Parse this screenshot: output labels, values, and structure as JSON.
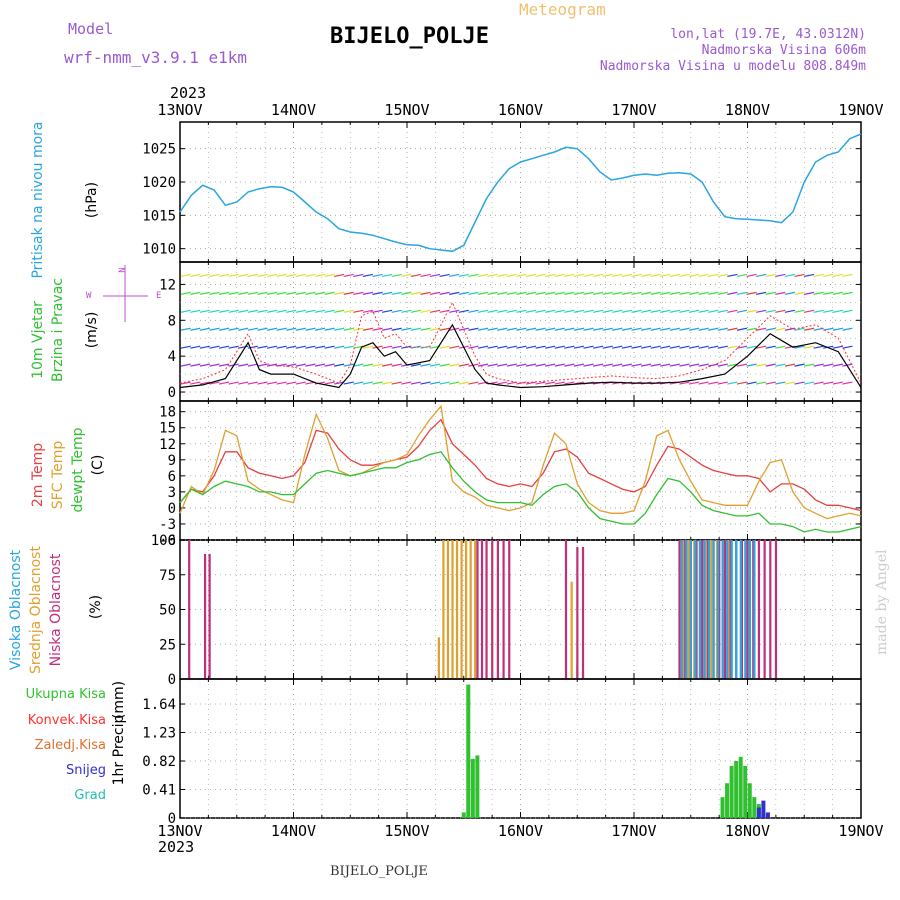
{
  "header": {
    "model_label": "Model",
    "model_name": "wrf-nmm_v3.9.1 e1km",
    "app_title": "Meteogram",
    "station": "BIJELO_POLJE",
    "lonlat": "lon,lat (19.7E, 43.0312N)",
    "altitude": "Nadmorska Visina 606m",
    "model_altitude": "Nadmorska Visina u modelu 808.849m",
    "year_top": "2023",
    "year_bottom": "2023",
    "footer_station": "BIJELO_POLJE",
    "credit": "made by Angel"
  },
  "colors": {
    "pressure": "#29a6e0",
    "wind_speed": "#000000",
    "wind_gust": "#ff3030",
    "t2m": "#e84040",
    "tsfc": "#e0a030",
    "dewpt": "#30c030",
    "high_cloud": "#29a6e0",
    "mid_cloud": "#e0a030",
    "low_cloud": "#c0307a",
    "total_precip": "#30c030",
    "conv_precip": "#ff3030",
    "snow": "#3030d0",
    "grid": "#999999"
  },
  "time_axis": {
    "labels": [
      "13NOV",
      "14NOV",
      "15NOV",
      "16NOV",
      "17NOV",
      "18NOV",
      "19NOV"
    ]
  },
  "chart_data": [
    {
      "type": "line",
      "id": "pressure",
      "ylabel_title": "Pritisak na nivou mora",
      "ylabel_unit": "(hPa)",
      "ylim": [
        1008,
        1029
      ],
      "yticks": [
        1010,
        1015,
        1020,
        1025
      ],
      "grid": true,
      "x": [
        0,
        0.1,
        0.2,
        0.3,
        0.4,
        0.5,
        0.6,
        0.7,
        0.8,
        0.9,
        1.0,
        1.1,
        1.2,
        1.3,
        1.4,
        1.5,
        1.6,
        1.7,
        1.8,
        1.9,
        2.0,
        2.1,
        2.2,
        2.3,
        2.4,
        2.5,
        2.6,
        2.7,
        2.8,
        2.9,
        3.0,
        3.1,
        3.2,
        3.3,
        3.4,
        3.5,
        3.6,
        3.7,
        3.8,
        3.9,
        4.0,
        4.1,
        4.2,
        4.3,
        4.4,
        4.5,
        4.6,
        4.7,
        4.8,
        4.9,
        5.0,
        5.1,
        5.2,
        5.3,
        5.4,
        5.5,
        5.6,
        5.7,
        5.8,
        5.9,
        6.0
      ],
      "series": [
        {
          "values": [
            1015.5,
            1018.0,
            1019.5,
            1018.8,
            1016.5,
            1017.0,
            1018.5,
            1019.0,
            1019.3,
            1019.2,
            1018.5,
            1017.0,
            1015.5,
            1014.5,
            1013.0,
            1012.5,
            1012.3,
            1012.0,
            1011.5,
            1011.0,
            1010.6,
            1010.5,
            1010.0,
            1009.8,
            1009.6,
            1010.5,
            1014.0,
            1017.5,
            1020.0,
            1022.0,
            1023.0,
            1023.5,
            1024.0,
            1024.5,
            1025.2,
            1025.0,
            1023.5,
            1021.5,
            1020.3,
            1020.6,
            1021.0,
            1021.2,
            1021.0,
            1021.3,
            1021.4,
            1021.2,
            1020.0,
            1017.0,
            1014.8,
            1014.5,
            1014.4,
            1014.3,
            1014.2,
            1013.9,
            1015.5,
            1020.0,
            1023.0,
            1024.0,
            1024.5,
            1026.5,
            1027.2
          ]
        }
      ]
    },
    {
      "type": "line",
      "id": "wind",
      "ylabel_title": "10m Vjetar",
      "ylabel_title2": "Brzina i Pravac",
      "ylabel_unit": "(m/s)",
      "legend_north": "N",
      "legend_east": "E",
      "legend_west": "W",
      "ylim": [
        -1,
        14.5
      ],
      "yticks": [
        0,
        4,
        8,
        12
      ],
      "yticks_minor": [
        2,
        6,
        10
      ],
      "grid": true,
      "x": [
        0,
        0.2,
        0.4,
        0.6,
        0.7,
        0.8,
        1.0,
        1.2,
        1.4,
        1.5,
        1.6,
        1.7,
        1.8,
        1.9,
        2.0,
        2.2,
        2.4,
        2.6,
        2.7,
        2.8,
        3.0,
        3.2,
        3.4,
        3.6,
        3.8,
        4.0,
        4.2,
        4.4,
        4.6,
        4.8,
        5.0,
        5.2,
        5.4,
        5.6,
        5.8,
        6.0
      ],
      "series": [
        {
          "name": "speed",
          "values": [
            0.5,
            0.8,
            1.5,
            5.5,
            2.5,
            2.0,
            2.0,
            1.0,
            0.5,
            2.0,
            5.0,
            5.5,
            4.0,
            4.5,
            3.0,
            3.5,
            7.5,
            2.5,
            1.0,
            0.8,
            0.5,
            0.6,
            0.8,
            1.0,
            1.1,
            1.0,
            1.0,
            1.1,
            1.5,
            2.0,
            4.0,
            6.5,
            5.0,
            5.5,
            4.5,
            0.5
          ]
        },
        {
          "name": "gust",
          "values": [
            1.0,
            1.5,
            2.5,
            6.5,
            3.5,
            3.0,
            2.8,
            2.0,
            1.0,
            3.0,
            8.5,
            9.0,
            6.0,
            6.5,
            5.0,
            5.0,
            10.0,
            4.0,
            2.0,
            1.5,
            1.0,
            1.2,
            1.4,
            1.6,
            1.8,
            1.6,
            1.5,
            1.8,
            2.5,
            3.5,
            6.0,
            8.5,
            7.0,
            7.5,
            6.0,
            1.0
          ]
        }
      ]
    },
    {
      "type": "line",
      "id": "temperature",
      "ylabel_title": "2m Temp",
      "ylabel_title2": "SFC Temp",
      "ylabel_title3": "dewpt Temp",
      "ylabel_unit": "(C)",
      "ylim": [
        -6,
        20
      ],
      "yticks": [
        -6,
        -3,
        0,
        3,
        6,
        9,
        12,
        15,
        18
      ],
      "grid": true,
      "x": [
        0,
        0.1,
        0.2,
        0.3,
        0.4,
        0.5,
        0.6,
        0.7,
        0.8,
        0.9,
        1.0,
        1.1,
        1.2,
        1.3,
        1.4,
        1.5,
        1.6,
        1.7,
        1.8,
        1.9,
        2.0,
        2.1,
        2.2,
        2.3,
        2.4,
        2.5,
        2.6,
        2.7,
        2.8,
        2.9,
        3.0,
        3.1,
        3.2,
        3.3,
        3.4,
        3.5,
        3.6,
        3.7,
        3.8,
        3.9,
        4.0,
        4.1,
        4.2,
        4.3,
        4.4,
        4.5,
        4.6,
        4.7,
        4.8,
        4.9,
        5.0,
        5.1,
        5.2,
        5.3,
        5.4,
        5.5,
        5.6,
        5.7,
        5.8,
        5.9,
        6.0
      ],
      "series": [
        {
          "name": "t2m",
          "values": [
            1.0,
            3.5,
            3.0,
            6.0,
            10.5,
            10.5,
            7.5,
            6.5,
            6.0,
            5.5,
            6.0,
            8.5,
            14.5,
            14.0,
            11.0,
            9.0,
            8.0,
            8.0,
            8.5,
            9.0,
            9.5,
            11.5,
            14.5,
            16.5,
            12.0,
            10.0,
            8.0,
            5.5,
            4.5,
            4.0,
            4.5,
            4.0,
            6.5,
            10.5,
            11.0,
            9.5,
            6.5,
            5.5,
            4.5,
            3.5,
            3.0,
            4.0,
            8.0,
            11.5,
            11.0,
            9.5,
            8.0,
            7.0,
            6.5,
            6.0,
            6.0,
            5.5,
            3.0,
            4.5,
            4.5,
            3.5,
            1.5,
            0.5,
            0.5,
            0.0,
            -0.5
          ]
        },
        {
          "name": "tsfc",
          "values": [
            -1.0,
            4.0,
            2.5,
            7.0,
            14.5,
            13.5,
            5.0,
            3.5,
            2.5,
            1.5,
            1.0,
            10.0,
            17.5,
            13.0,
            7.0,
            6.0,
            6.5,
            7.5,
            8.5,
            9.0,
            10.0,
            13.5,
            16.5,
            19.0,
            5.0,
            3.0,
            2.0,
            0.5,
            0.0,
            -0.5,
            0.0,
            1.0,
            8.0,
            14.0,
            12.0,
            4.5,
            1.0,
            -0.5,
            -1.0,
            -1.0,
            -0.5,
            5.0,
            13.5,
            14.5,
            9.0,
            5.0,
            1.5,
            1.0,
            0.5,
            0.5,
            0.5,
            5.0,
            8.5,
            9.0,
            3.0,
            0.0,
            -1.0,
            -2.0,
            -1.5,
            -1.0,
            -1.5
          ]
        },
        {
          "name": "dewpt",
          "values": [
            1.0,
            3.5,
            2.5,
            4.0,
            5.0,
            4.5,
            4.0,
            3.0,
            3.0,
            2.5,
            2.5,
            4.5,
            6.5,
            7.0,
            6.5,
            6.0,
            6.5,
            7.0,
            7.5,
            7.5,
            8.5,
            9.0,
            10.0,
            10.5,
            7.5,
            5.0,
            3.0,
            1.5,
            1.0,
            1.0,
            1.0,
            0.5,
            2.5,
            4.0,
            4.5,
            3.0,
            0.0,
            -2.0,
            -2.5,
            -3.0,
            -3.0,
            -1.0,
            2.5,
            5.5,
            5.0,
            3.0,
            0.5,
            -0.5,
            -1.0,
            -1.5,
            -1.5,
            -1.0,
            -3.0,
            -3.0,
            -3.5,
            -4.5,
            -4.0,
            -4.5,
            -4.5,
            -4.0,
            -3.5
          ]
        }
      ]
    },
    {
      "type": "bar",
      "id": "cloud",
      "ylabel_title": "Visoka Oblacnost",
      "ylabel_title2": "Srednja Oblacnost",
      "ylabel_title3": "Niska Oblacnost",
      "ylabel_unit": "(%)",
      "ylim": [
        0,
        100
      ],
      "yticks": [
        0,
        25,
        50,
        75,
        100
      ],
      "grid": true,
      "series": [
        {
          "name": "low",
          "x": [
            0.08,
            0.22,
            0.26,
            2.62,
            2.66,
            2.7,
            2.75,
            2.8,
            2.85,
            2.9,
            3.4,
            3.5,
            3.55,
            4.4,
            4.45,
            4.5,
            4.55,
            4.6,
            4.65,
            4.7,
            4.75,
            4.8,
            4.85,
            4.9,
            4.95,
            5.0,
            5.05,
            5.1,
            5.15,
            5.2,
            5.25
          ],
          "values": [
            100,
            90,
            90,
            100,
            100,
            100,
            100,
            100,
            100,
            100,
            100,
            95,
            95,
            100,
            100,
            100,
            100,
            100,
            100,
            100,
            100,
            100,
            100,
            100,
            100,
            100,
            100,
            100,
            100,
            100,
            100
          ]
        },
        {
          "name": "mid",
          "x": [
            2.28,
            2.32,
            2.36,
            2.4,
            2.44,
            2.48,
            2.52,
            2.56,
            2.6,
            3.45,
            3.5,
            3.55,
            4.43,
            4.48,
            4.53,
            4.58,
            4.63,
            4.68,
            4.73,
            4.78,
            4.83
          ],
          "values": [
            30,
            100,
            100,
            100,
            100,
            100,
            100,
            100,
            100,
            70,
            10,
            5,
            100,
            100,
            100,
            100,
            100,
            100,
            100,
            100,
            100
          ]
        },
        {
          "name": "high",
          "x": [
            4.42,
            4.46,
            4.5,
            4.54,
            4.58,
            4.62,
            4.66,
            4.7,
            4.74,
            4.78,
            4.82,
            4.86,
            4.9,
            4.94,
            4.98,
            5.02,
            5.06
          ],
          "values": [
            100,
            100,
            100,
            100,
            100,
            100,
            100,
            100,
            100,
            100,
            100,
            100,
            100,
            100,
            100,
            100,
            100
          ]
        }
      ]
    },
    {
      "type": "bar",
      "id": "precip",
      "ylabel_title": "1hr Precip",
      "ylabel_unit": "(mm)",
      "legend": [
        "Ukupna Kisa",
        "Konvek.Kisa",
        "Zaledj.Kisa",
        "Snijeg",
        "Grad"
      ],
      "ylim": [
        0,
        2.0
      ],
      "yticks": [
        0,
        0.41,
        0.82,
        1.23,
        1.64
      ],
      "grid": true,
      "series": [
        {
          "name": "total",
          "x": [
            2.5,
            2.54,
            2.58,
            2.62,
            4.78,
            4.82,
            4.86,
            4.9,
            4.94,
            4.98,
            5.02,
            5.06,
            5.1,
            5.14
          ],
          "values": [
            0.08,
            1.92,
            0.85,
            0.9,
            0.3,
            0.5,
            0.75,
            0.82,
            0.88,
            0.75,
            0.5,
            0.3,
            0.2,
            0.1
          ]
        },
        {
          "name": "snow",
          "x": [
            5.1,
            5.14,
            5.18
          ],
          "values": [
            0.15,
            0.25,
            0.08
          ]
        }
      ]
    }
  ]
}
